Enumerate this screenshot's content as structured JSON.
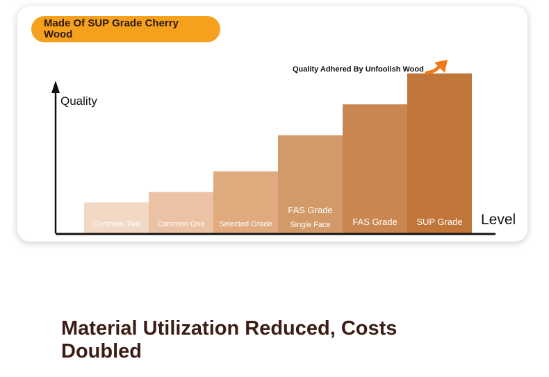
{
  "banner": {
    "text": "Made Of SUP Grade Cherry Wood"
  },
  "chart_data": {
    "type": "bar",
    "title": "",
    "ylabel": "Quality",
    "xlabel": "Level",
    "annotation": "Quality Adhered By Unfoolish Wood",
    "ylim": [
      0,
      7
    ],
    "categories": [
      {
        "lines": [
          "Common Two"
        ]
      },
      {
        "lines": [
          "Common One"
        ]
      },
      {
        "lines": [
          "Selected Grade"
        ]
      },
      {
        "lines": [
          "FAS Grade",
          "Single Face"
        ]
      },
      {
        "lines": [
          "FAS Grade"
        ]
      },
      {
        "lines": [
          "SUP Grade"
        ]
      }
    ],
    "values": [
      1.2,
      1.6,
      2.4,
      3.8,
      5.0,
      6.2
    ],
    "colors": [
      "#f2d9c6",
      "#ebc3a4",
      "#deaa7e",
      "#d39a69",
      "#c98650",
      "#c07638"
    ],
    "accent": "#ef7a1e",
    "grid": false
  },
  "footer": {
    "headline": "Material Utilization Reduced, Costs Doubled"
  }
}
